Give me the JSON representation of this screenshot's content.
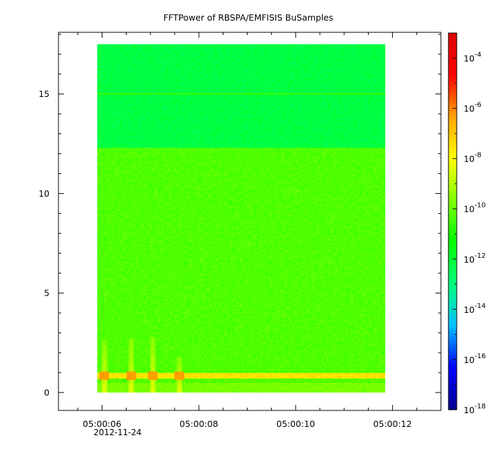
{
  "chart_data": {
    "type": "heatmap",
    "title": "FFTPower of RBSPA/EMFISIS  BuSamples",
    "xlabel": "",
    "ylabel": "",
    "x_range": [
      "05:00:05.1",
      "05:00:13.0"
    ],
    "x_data_extent": [
      "05:00:05.9",
      "05:00:11.85"
    ],
    "x_ticks": [
      "05:00:06",
      "05:00:08",
      "05:00:10",
      "05:00:12"
    ],
    "x_tick_values_s": [
      6,
      8,
      10,
      12
    ],
    "date_label": "2012-11-24",
    "ylim": [
      -0.9,
      18.1
    ],
    "y_data_extent": [
      0,
      17.5
    ],
    "y_ticks": [
      0,
      5,
      10,
      15
    ],
    "colorbar": {
      "scale": "log",
      "range": [
        1e-18,
        0.001
      ],
      "colors": [
        "#00008b",
        "#0000ff",
        "#00bfff",
        "#00ff80",
        "#00ff00",
        "#80ff00",
        "#ffff00",
        "#ffa500",
        "#ff0000",
        "#dd0000"
      ],
      "ticks": [
        {
          "base": "10",
          "exp": "-4",
          "value": 0.0001
        },
        {
          "base": "10",
          "exp": "-6",
          "value": 1e-06
        },
        {
          "base": "10",
          "exp": "-8",
          "value": 1e-08
        },
        {
          "base": "10",
          "exp": "-10",
          "value": 1e-10
        },
        {
          "base": "10",
          "exp": "-12",
          "value": 1e-12
        },
        {
          "base": "10",
          "exp": "-14",
          "value": 1e-14
        },
        {
          "base": "10",
          "exp": "-16",
          "value": 1e-16
        },
        {
          "base": "10",
          "exp": "-18",
          "value": 1e-18
        }
      ]
    },
    "features": {
      "noise_band_top_y": 12.3,
      "background_above_exp": -12.2,
      "background_below_exp": -10.3,
      "line_15_y": 15.0,
      "line_15_exp": -10.5,
      "band_low_y": [
        0.7,
        1.0
      ],
      "band_low_exp": -7.5,
      "bursts_time_s": [
        6.05,
        6.6,
        7.05,
        7.6
      ],
      "bursts_top_y": [
        2.6,
        2.7,
        2.8,
        1.8
      ]
    }
  }
}
